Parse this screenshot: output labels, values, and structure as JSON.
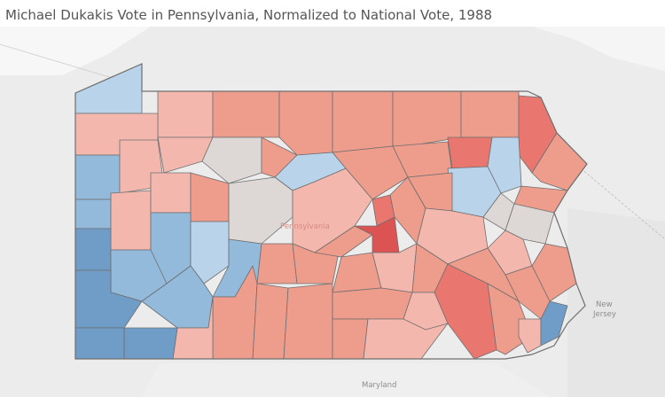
{
  "title": "Michael Dukakis Vote in Pennsylvania, Normalized to National Vote, 1988",
  "basemap": {
    "state_label": "Pennsylvania",
    "neighbor_labels": [
      "New Jersey",
      "Maryland"
    ]
  },
  "colors": {
    "background": "#e9e9e9",
    "land": "#f2f2f2",
    "outside": "#dedede",
    "stroke": "#6f6f6f",
    "strong_blue": "#6f9dc7",
    "medium_blue": "#93b9db",
    "light_blue": "#b9d3ea",
    "neutral": "#ddd8d6",
    "light_red": "#f4b7ad",
    "medium_red": "#ee9c8b",
    "strong_red": "#e9776f",
    "darkest_red": "#dc5353"
  }
}
